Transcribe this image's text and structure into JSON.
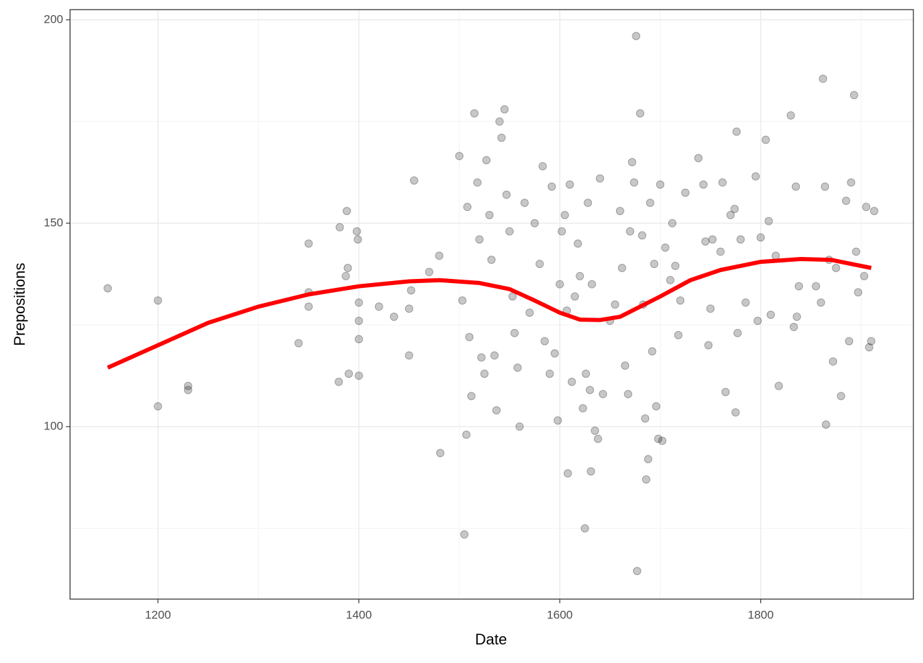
{
  "chart_data": {
    "type": "scatter",
    "x_label": "Date",
    "y_label": "Prepositions",
    "xlim": [
      1112.5,
      1952
    ],
    "xticks": [
      1200,
      1400,
      1600,
      1800
    ],
    "minor_xticks": [
      1300,
      1500,
      1700,
      1900
    ],
    "ylim": [
      57.6,
      202.5
    ],
    "yticks": [
      100,
      150,
      200
    ],
    "minor_yticks": [
      75,
      125,
      175
    ],
    "grid": true,
    "color": "#000000",
    "x": [
      1150,
      1200,
      1200,
      1230,
      1230,
      1340,
      1350,
      1350,
      1350,
      1380,
      1381,
      1387,
      1388,
      1389,
      1390,
      1398,
      1399,
      1400,
      1400,
      1400,
      1400,
      1420,
      1435,
      1450,
      1450,
      1452,
      1455,
      1470,
      1480,
      1481,
      1500,
      1503,
      1505,
      1507,
      1508,
      1510,
      1512,
      1515,
      1518,
      1520,
      1522,
      1525,
      1527,
      1530,
      1532,
      1535,
      1537,
      1540,
      1542,
      1545,
      1547,
      1550,
      1553,
      1555,
      1558,
      1560,
      1565,
      1570,
      1575,
      1580,
      1583,
      1585,
      1590,
      1592,
      1595,
      1598,
      1600,
      1602,
      1605,
      1607,
      1608,
      1610,
      1612,
      1615,
      1618,
      1620,
      1623,
      1625,
      1626,
      1628,
      1630,
      1631,
      1632,
      1635,
      1638,
      1640,
      1643,
      1650,
      1655,
      1660,
      1662,
      1665,
      1668,
      1670,
      1672,
      1674,
      1676,
      1677,
      1680,
      1682,
      1683,
      1685,
      1686,
      1688,
      1690,
      1692,
      1694,
      1696,
      1698,
      1700,
      1702,
      1705,
      1710,
      1712,
      1715,
      1718,
      1720,
      1725,
      1738,
      1743,
      1745,
      1748,
      1750,
      1752,
      1760,
      1762,
      1765,
      1770,
      1774,
      1775,
      1776,
      1777,
      1780,
      1785,
      1795,
      1797,
      1800,
      1805,
      1808,
      1810,
      1815,
      1818,
      1830,
      1833,
      1835,
      1836,
      1838,
      1855,
      1860,
      1862,
      1864,
      1865,
      1868,
      1872,
      1875,
      1880,
      1885,
      1888,
      1890,
      1893,
      1895,
      1897,
      1903,
      1905,
      1908,
      1910,
      1913
    ],
    "values": [
      134,
      131,
      105,
      110,
      109,
      120.5,
      145,
      133,
      129.5,
      111,
      149,
      137,
      153,
      139,
      113,
      148,
      146,
      130.5,
      126,
      121.5,
      112.5,
      129.5,
      127,
      117.5,
      129,
      133.5,
      160.5,
      138,
      142,
      93.5,
      166.5,
      131,
      73.5,
      98,
      154,
      122,
      107.5,
      177,
      160,
      146,
      117,
      113,
      165.5,
      152,
      141,
      117.5,
      104,
      175,
      171,
      178,
      157,
      148,
      132,
      123,
      114.5,
      100,
      155,
      128,
      150,
      140,
      164,
      121,
      113,
      159,
      118,
      101.5,
      135,
      148,
      152,
      128.5,
      88.5,
      159.5,
      111,
      132,
      145,
      137,
      104.5,
      75,
      113,
      155,
      109,
      89,
      135,
      99,
      97,
      161,
      108,
      126,
      130,
      153,
      139,
      115,
      108,
      148,
      165,
      160,
      196,
      64.5,
      177,
      147,
      130,
      102,
      87,
      92,
      155,
      118.5,
      140,
      105,
      97,
      159.5,
      96.5,
      144,
      136,
      150,
      139.5,
      122.5,
      131,
      157.5,
      166,
      159.5,
      145.5,
      120,
      129,
      146,
      143,
      160,
      108.5,
      152,
      153.5,
      103.5,
      172.5,
      123,
      146,
      130.5,
      161.5,
      126,
      146.5,
      170.5,
      150.5,
      127.5,
      142,
      110,
      176.5,
      124.5,
      159,
      127,
      134.5,
      134.5,
      130.5,
      185.5,
      159,
      100.5,
      141,
      116,
      139,
      107.5,
      155.5,
      121,
      160,
      181.5,
      143,
      133,
      137,
      154,
      119.5,
      121,
      153
    ],
    "smooth": {
      "color": "#ff0000",
      "x": [
        1150,
        1200,
        1250,
        1300,
        1350,
        1400,
        1450,
        1480,
        1520,
        1550,
        1575,
        1600,
        1620,
        1640,
        1660,
        1680,
        1700,
        1730,
        1760,
        1800,
        1840,
        1870,
        1910
      ],
      "values": [
        114.5,
        120,
        125.5,
        129.5,
        132.5,
        134.5,
        135.7,
        136,
        135.3,
        133.8,
        131,
        128,
        126.3,
        126.2,
        127,
        129.5,
        132,
        136,
        138.5,
        140.5,
        141.2,
        141,
        139
      ]
    }
  }
}
